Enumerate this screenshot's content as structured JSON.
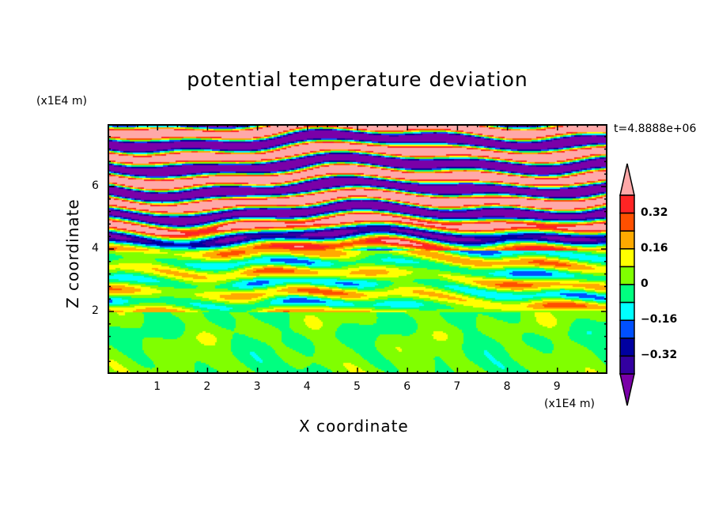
{
  "chart_data": {
    "type": "heatmap",
    "title": "potential temperature deviation",
    "xlabel": "X coordinate",
    "ylabel": "Z coordinate",
    "x_unit": "(x1E4 m)",
    "y_unit": "(x1E4 m)",
    "time_label": "t=4.8888e+06",
    "xlim": [
      0,
      10
    ],
    "ylim": [
      0,
      8
    ],
    "x_ticks": [
      "1",
      "2",
      "3",
      "4",
      "5",
      "6",
      "7",
      "8",
      "9"
    ],
    "y_ticks": [
      "2",
      "4",
      "6"
    ],
    "levels": [
      -0.4,
      -0.32,
      -0.24,
      -0.16,
      -0.08,
      0,
      0.08,
      0.16,
      0.24,
      0.32,
      0.4
    ],
    "colors": [
      "#7a00a8",
      "#3300a0",
      "#0000a0",
      "#0050ff",
      "#00ffff",
      "#00ff80",
      "#80ff00",
      "#ffff00",
      "#ffaa00",
      "#ff5000",
      "#ff2424",
      "#ffa8a8"
    ],
    "colorbar_labels": [
      "0.32",
      "0.16",
      "0",
      "-0.16",
      "-0.32"
    ],
    "colorbar_label_values": [
      0.32,
      0.16,
      0,
      -0.16,
      -0.32
    ],
    "description_regions": [
      {
        "z_range": [
          0,
          2
        ],
        "value_range": [
          -0.08,
          0.08
        ]
      },
      {
        "z_range": [
          2,
          4
        ],
        "value_range": [
          -0.24,
          0.4
        ]
      },
      {
        "z_range": [
          4,
          8
        ],
        "value_range": [
          -0.5,
          0.5
        ]
      }
    ]
  }
}
